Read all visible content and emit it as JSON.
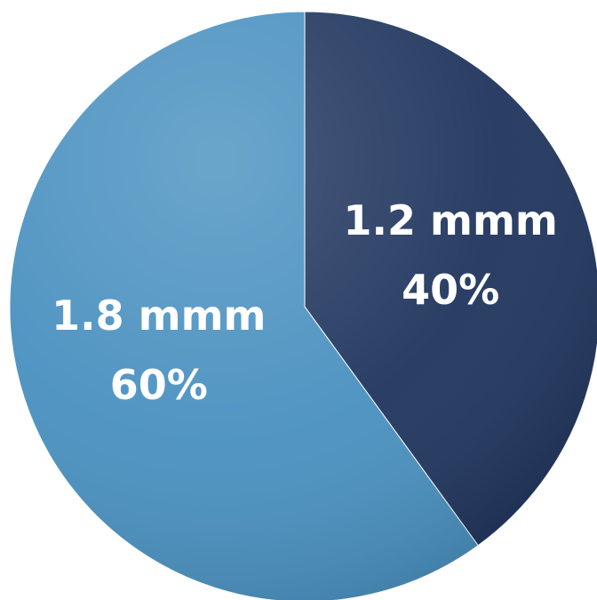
{
  "chart_data": {
    "type": "pie",
    "categories": [
      "1.2 mmm",
      "1.8 mmm"
    ],
    "values": [
      40,
      60
    ],
    "value_labels": [
      "40%",
      "60%"
    ],
    "colors": [
      "#22375f",
      "#4a91c0"
    ]
  }
}
